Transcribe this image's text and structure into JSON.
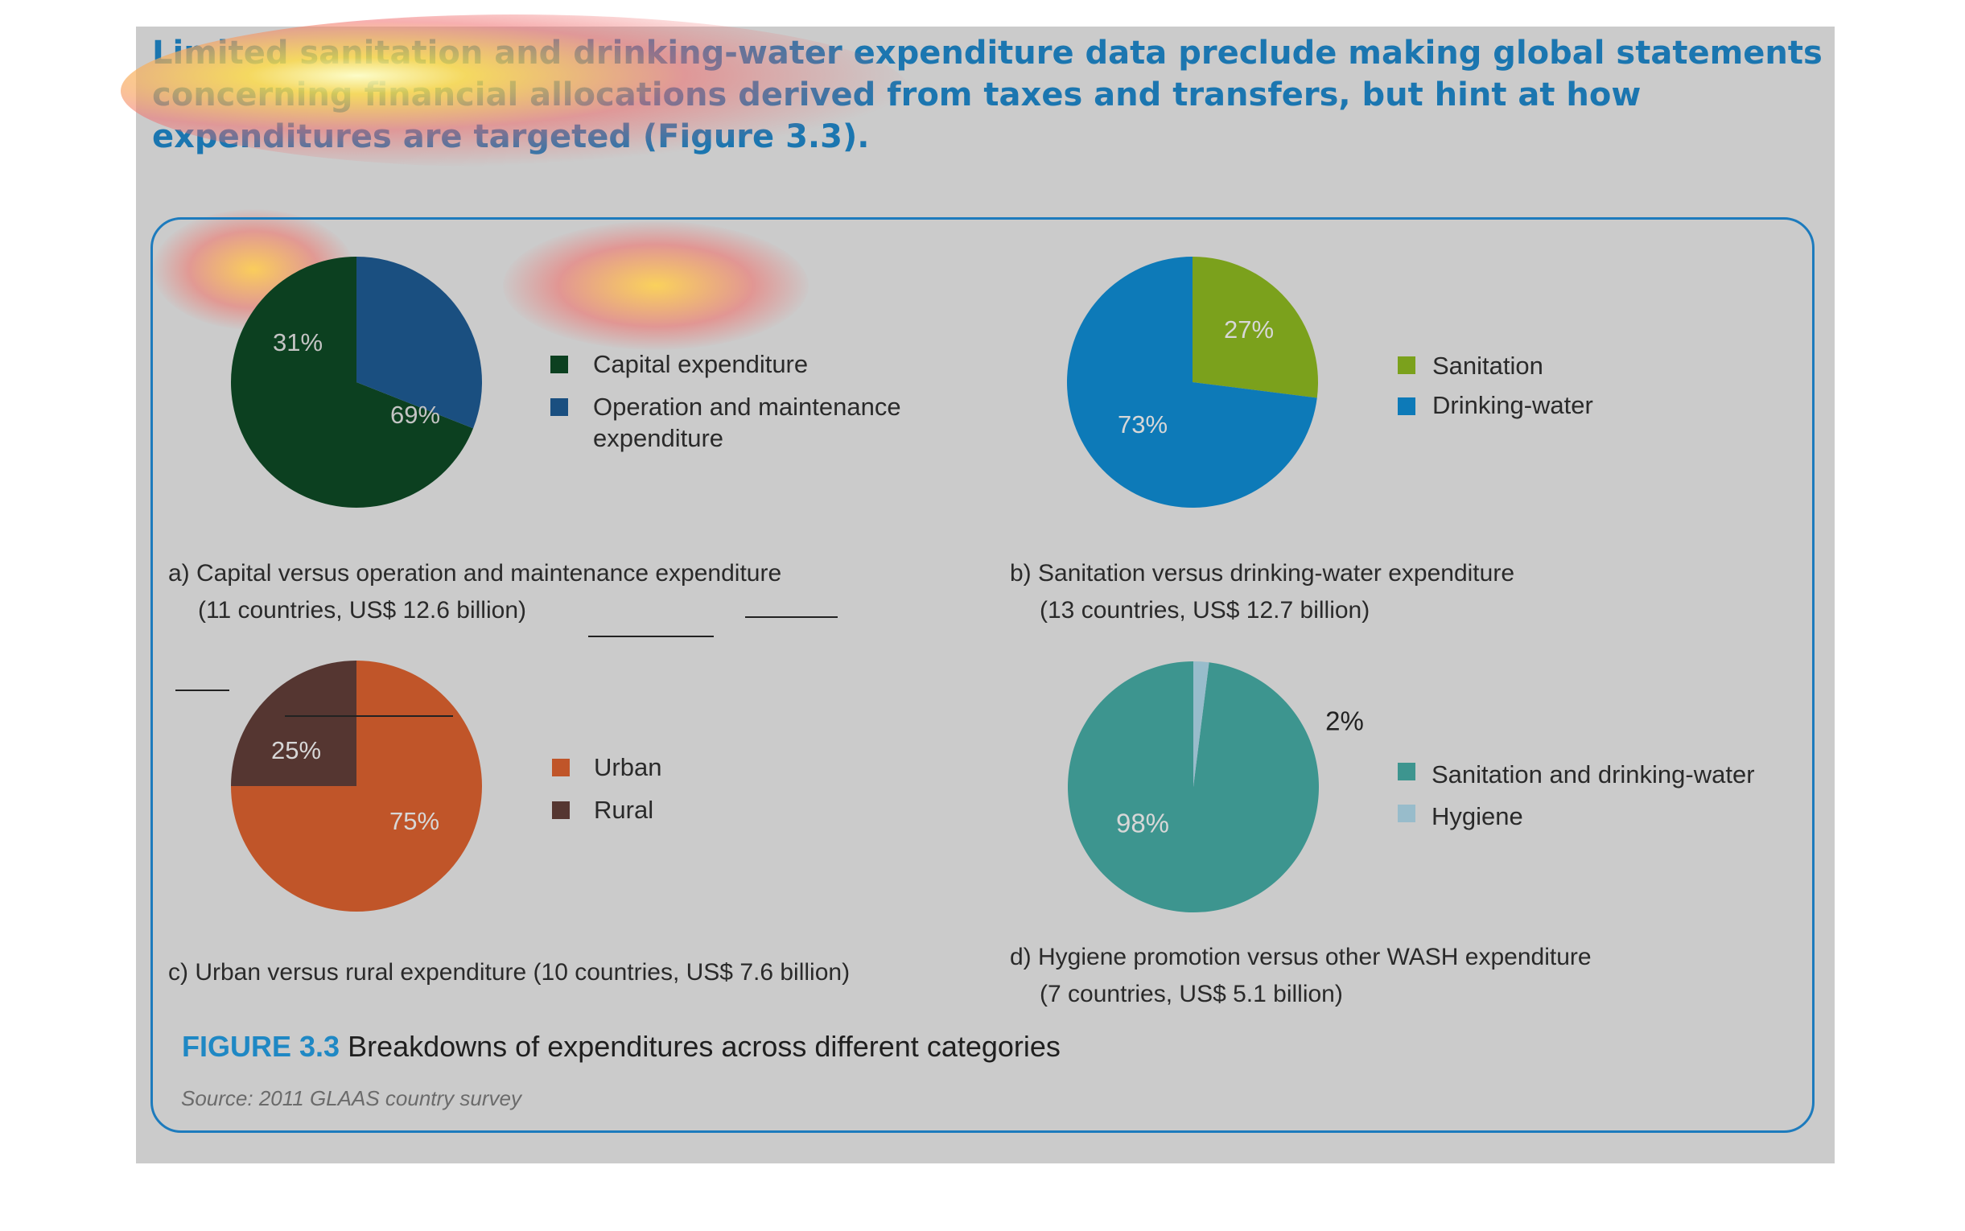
{
  "heading": "Limited sanitation and drinking-water expenditure data preclude making global statements concerning financial allocations derived from taxes and transfers, but hint at how expenditures are targeted (Figure 3.3).",
  "figure": {
    "number": "FIGURE 3.3",
    "title": "Breakdowns of expenditures across different categories",
    "source": "Source: 2011 GLAAS country survey"
  },
  "colors": {
    "panel_background": "#cbcbcb",
    "heading": "#1b76b0",
    "frame": "#1d7bbd",
    "figure_number": "#1f88c4"
  },
  "chart_data": [
    {
      "type": "pie",
      "caption_line1": "a) Capital versus operation and maintenance expenditure",
      "caption_line2": "(11 countries, US$ 12.6 billion)",
      "slices": [
        {
          "name": "Capital expenditure",
          "value": 69,
          "label": "69%",
          "color": "#0c4020",
          "label_color": "#c4c4c4"
        },
        {
          "name": "Operation and maintenance\nexpenditure",
          "value": 31,
          "label": "31%",
          "color": "#1a4f80",
          "label_color": "#c4c4c4"
        }
      ]
    },
    {
      "type": "pie",
      "caption_line1": "b) Sanitation versus drinking-water expenditure",
      "caption_line2": "(13 countries, US$ 12.7 billion)",
      "slices": [
        {
          "name": "Sanitation",
          "value": 27,
          "label": "27%",
          "color": "#7ba11c",
          "label_color": "#d7d7d7"
        },
        {
          "name": "Drinking-water",
          "value": 73,
          "label": "73%",
          "color": "#0d7ab8",
          "label_color": "#d7d7d7"
        }
      ]
    },
    {
      "type": "pie",
      "caption_line1": "c) Urban versus rural expenditure (10 countries, US$ 7.6 billion)",
      "caption_line2": "",
      "slices": [
        {
          "name": "Urban",
          "value": 75,
          "label": "75%",
          "color": "#c05529",
          "label_color": "#d7d7d7"
        },
        {
          "name": "Rural",
          "value": 25,
          "label": "25%",
          "color": "#553631",
          "label_color": "#d7d7d7"
        }
      ]
    },
    {
      "type": "pie",
      "caption_line1": "d) Hygiene promotion versus other WASH expenditure",
      "caption_line2": "(7 countries, US$ 5.1 billion)",
      "slices": [
        {
          "name": "Sanitation and drinking-water",
          "value": 98,
          "label": "98%",
          "color": "#3d958f",
          "label_color": "#d7d7d7"
        },
        {
          "name": "Hygiene",
          "value": 2,
          "label": "2%",
          "color": "#98bccb",
          "label_color": "#222222"
        }
      ]
    }
  ]
}
